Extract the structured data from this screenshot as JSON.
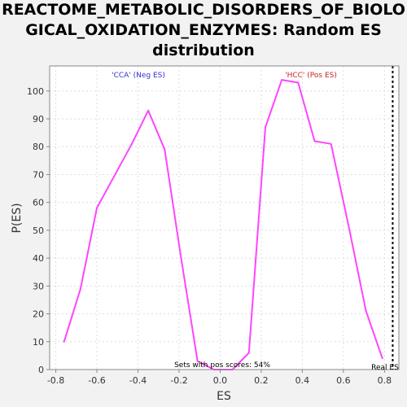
{
  "chart_data": {
    "type": "line",
    "title_lines": [
      "REACTOME_METABOLIC_DISORDERS_OF_BIOLO",
      "GICAL_OXIDATION_ENZYMES: Random ES",
      "distribution"
    ],
    "xlabel": "ES",
    "ylabel": "P(ES)",
    "xlim": [
      -0.83,
      0.87
    ],
    "ylim": [
      0,
      109
    ],
    "xticks": [
      -0.8,
      -0.6,
      -0.4,
      -0.2,
      0.0,
      0.2,
      0.4,
      0.6,
      0.8
    ],
    "xtick_labels": [
      "-0.8",
      "-0.6",
      "-0.4",
      "-0.2",
      "0.0",
      "0.2",
      "0.4",
      "0.6",
      "0.8"
    ],
    "yticks": [
      0,
      10,
      20,
      30,
      40,
      50,
      60,
      70,
      80,
      90,
      100
    ],
    "ytick_labels": [
      "0",
      "10",
      "20",
      "30",
      "40",
      "50",
      "60",
      "70",
      "80",
      "90",
      "100"
    ],
    "grid": true,
    "series": [
      {
        "color": "#ff44ff",
        "x": [
          -0.76,
          -0.68,
          -0.6,
          -0.43,
          -0.35,
          -0.27,
          -0.19,
          -0.11,
          -0.03,
          0.06,
          0.14,
          0.22,
          0.3,
          0.38,
          0.46,
          0.54,
          0.63,
          0.71,
          0.79
        ],
        "y": [
          10,
          29,
          58,
          81,
          93,
          79,
          40,
          3,
          0,
          0,
          6,
          87,
          104,
          103,
          82,
          81,
          50,
          21,
          4
        ]
      }
    ],
    "real_es": {
      "x": 0.84,
      "label": "Real ES"
    },
    "annotations": [
      {
        "text": "'CCA' (Neg ES)",
        "color": "#3333cc"
      },
      {
        "text": "'HCC' (Pos ES)",
        "color": "#cc2222"
      },
      {
        "text": "Sets with pos scores: 54%",
        "color": "#000000"
      }
    ]
  }
}
